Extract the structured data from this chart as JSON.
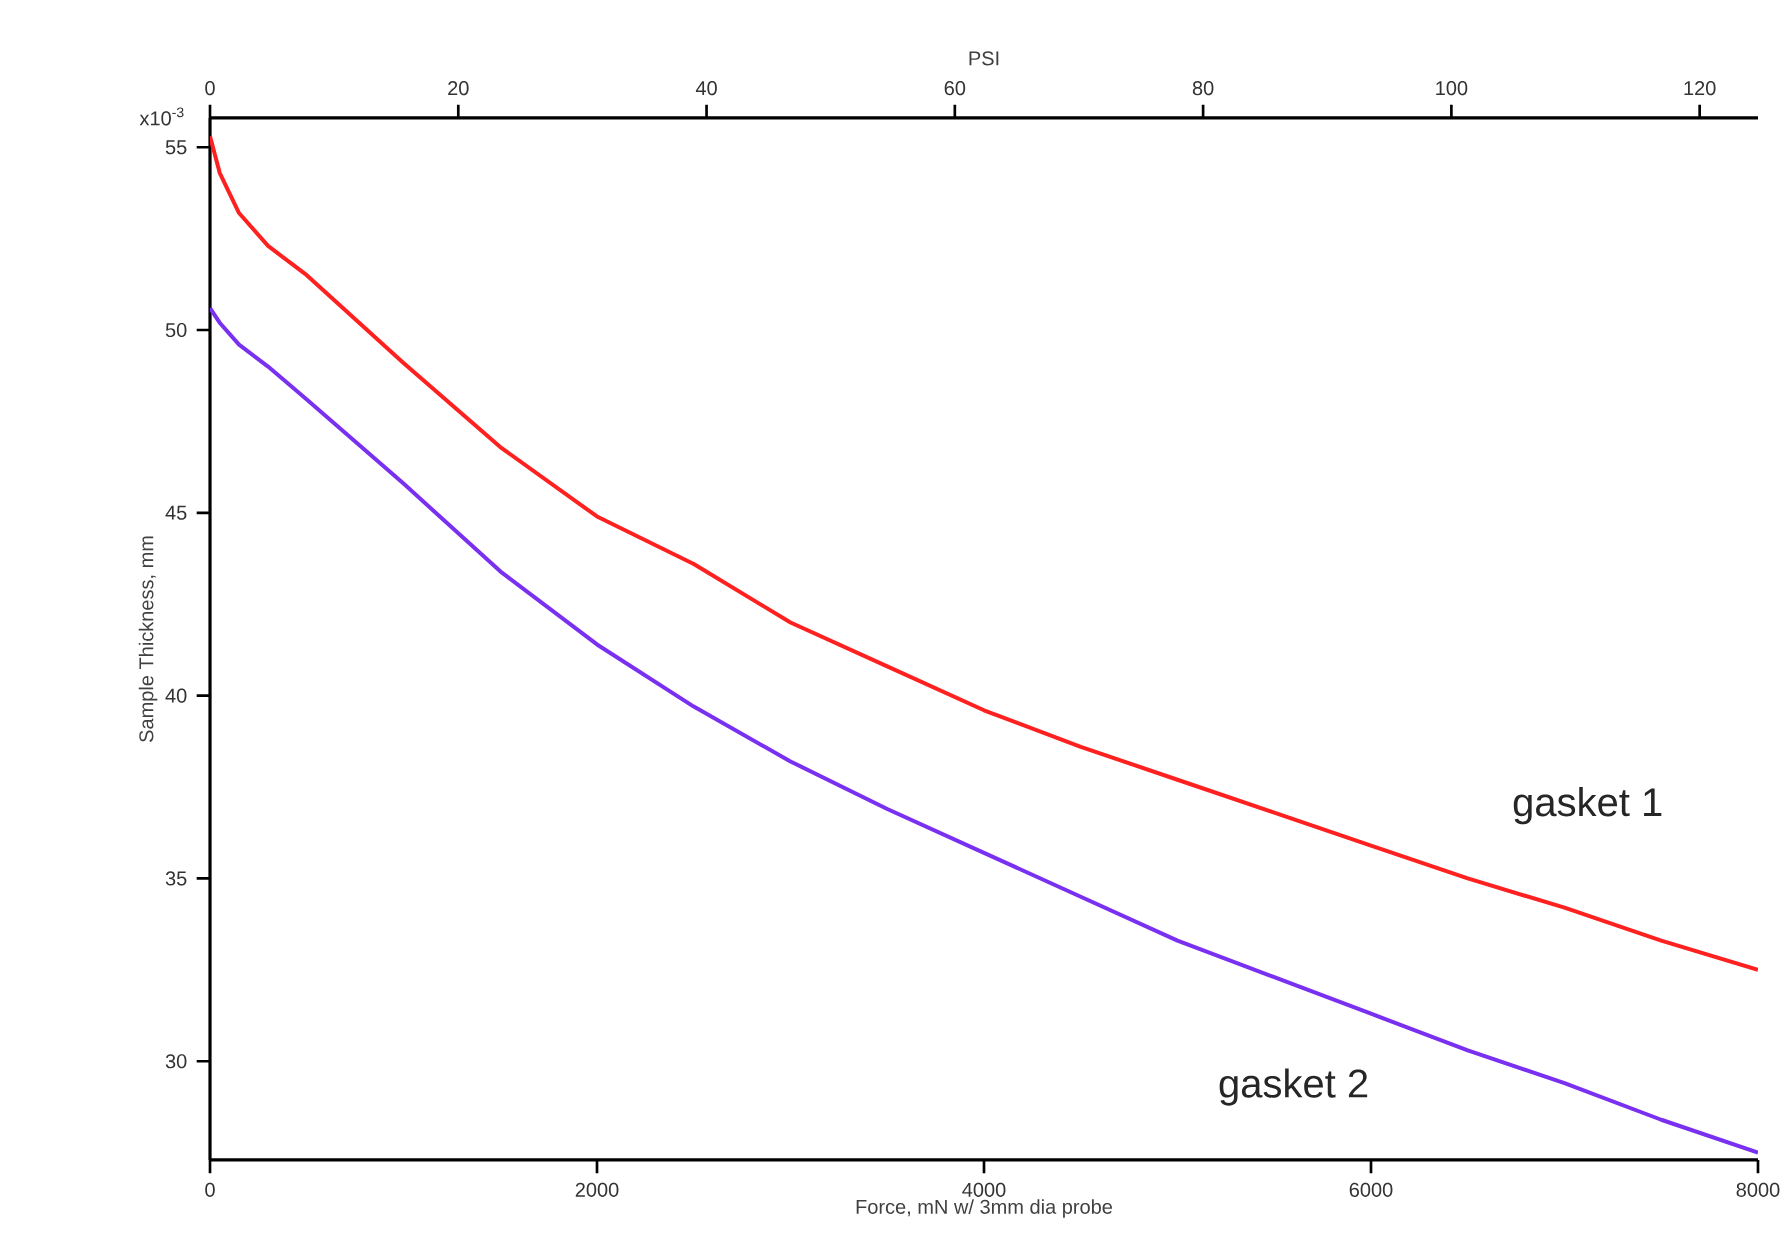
{
  "chart_data": {
    "type": "line",
    "xlabel": "Force, mN w/ 3mm dia probe",
    "ylabel": "Sample Thickness, mm",
    "x2label": "PSI",
    "xlim": [
      0,
      8000
    ],
    "xticks": [
      0,
      2000,
      4000,
      6000,
      8000
    ],
    "x2lim": [
      0,
      124.7
    ],
    "x2ticks": [
      0,
      20,
      40,
      60,
      80,
      100,
      120
    ],
    "ylim": [
      27.3,
      55.8
    ],
    "yticks": [
      30,
      35,
      40,
      45,
      50,
      55
    ],
    "annotations": [
      "x10$^{-3}$"
    ],
    "x": [
      0,
      50,
      150,
      300,
      500,
      1000,
      1500,
      2000,
      2500,
      3000,
      3500,
      4000,
      4500,
      5000,
      5500,
      6000,
      6500,
      7000,
      7500,
      8000
    ],
    "series": [
      {
        "name": "gasket 1",
        "color": "#ff2020",
        "values": [
          55.3,
          54.3,
          53.2,
          52.3,
          51.5,
          49.1,
          46.8,
          44.9,
          43.6,
          42.0,
          40.8,
          39.6,
          38.6,
          37.7,
          36.8,
          35.9,
          35.0,
          34.2,
          33.3,
          32.5
        ]
      },
      {
        "name": "gasket 2",
        "color": "#7a30f0",
        "values": [
          50.6,
          50.2,
          49.6,
          49.0,
          48.1,
          45.8,
          43.4,
          41.4,
          39.7,
          38.2,
          36.9,
          35.7,
          34.5,
          33.3,
          32.3,
          31.3,
          30.3,
          29.4,
          28.4,
          27.5
        ]
      }
    ],
    "grid": false,
    "legend": false,
    "marker": "none",
    "line_style": "solid"
  }
}
